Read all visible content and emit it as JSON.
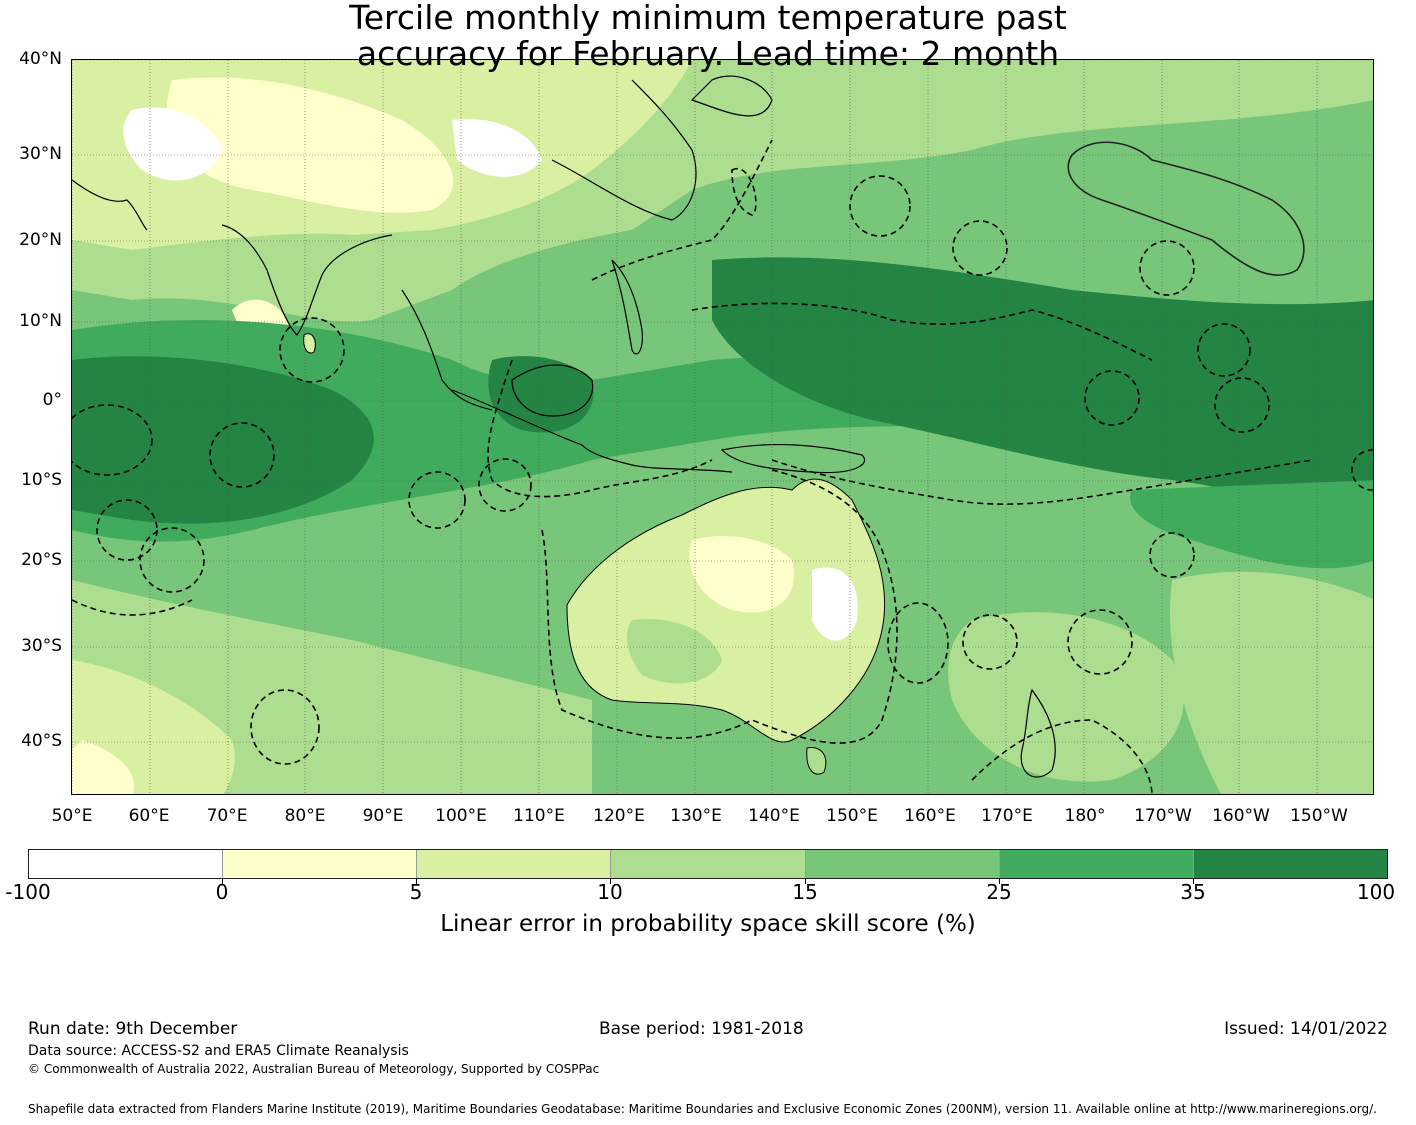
{
  "title": {
    "line1": "Tercile monthly minimum temperature past",
    "line2": "accuracy for February. Lead time: 2 month"
  },
  "axes": {
    "lat_labels": [
      "40°N",
      "30°N",
      "20°N",
      "10°N",
      "0°",
      "10°S",
      "20°S",
      "30°S",
      "40°S"
    ],
    "lon_labels": [
      "50°E",
      "60°E",
      "70°E",
      "80°E",
      "90°E",
      "100°E",
      "110°E",
      "120°E",
      "130°E",
      "140°E",
      "150°E",
      "160°E",
      "170°E",
      "180°",
      "170°W",
      "160°W",
      "150°W"
    ]
  },
  "colorbar": {
    "ticks": [
      "-100",
      "0",
      "5",
      "10",
      "15",
      "25",
      "35",
      "100"
    ],
    "colors": [
      "#ffffff",
      "#ffffcc",
      "#d9f0a3",
      "#addd8e",
      "#78c679",
      "#41ab5d",
      "#238443"
    ],
    "label": "Linear error in probability space skill score (%)"
  },
  "footer": {
    "run_date": "Run date: 9th December",
    "base_period": "Base period: 1981-2018",
    "issued": "Issued: 14/01/2022",
    "data_source": "Data source: ACCESS-S2 and ERA5 Climate Reanalysis",
    "copyright": "© Commonwealth of Australia 2022, Australian Bureau of Meteorology, Supported by COSPPac",
    "shapefile": "Shapefile data extracted from Flanders Marine Institute (2019), Maritime Boundaries Geodatabase: Maritime Boundaries and Exclusive Economic Zones (200NM), version 11. Available online at http://www.marineregions.org/."
  }
}
